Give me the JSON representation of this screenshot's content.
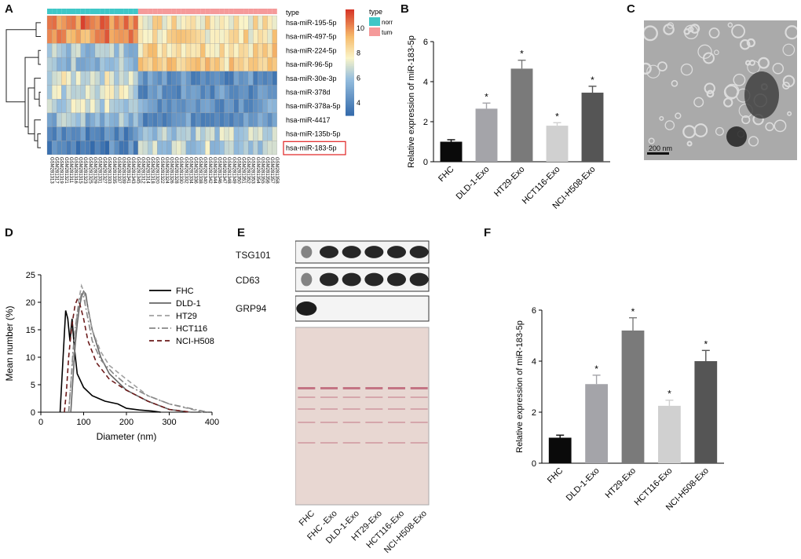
{
  "figure": {
    "panels": {
      "A": "A",
      "B": "B",
      "C": "C",
      "D": "D",
      "E": "E",
      "F": "F"
    }
  },
  "heatmap": {
    "rows": [
      "hsa-miR-195-5p",
      "hsa-miR-497-5p",
      "hsa-miR-224-5p",
      "hsa-miR-96-5p",
      "hsa-miR-30e-3p",
      "hsa-miR-378d",
      "hsa-miR-378a-5p",
      "hsa-miR-4417",
      "hsa-miR-135b-5p",
      "hsa-miR-183-5p"
    ],
    "highlighted_row": "hsa-miR-183-5p",
    "type_label": "type",
    "legend_title": "type",
    "legend_items": [
      {
        "label": "normal",
        "color": "#3fc7c7"
      },
      {
        "label": "tumor",
        "color": "#f59a9a"
      }
    ],
    "colorbar_ticks": [
      "10",
      "8",
      "6",
      "4"
    ],
    "colorbar_range": [
      3,
      11.5
    ],
    "n_normal": 19,
    "n_tumor": 29,
    "sample_ids": [
      "GSM281313",
      "GSM281317",
      "GSM281319",
      "GSM281321",
      "GSM281311",
      "GSM281316",
      "GSM281315",
      "GSM281323",
      "GSM281325",
      "GSM281329",
      "GSM281331",
      "GSM281327",
      "GSM281333",
      "GSM281335",
      "GSM281337",
      "GSM281339",
      "GSM281341",
      "GSM281343",
      "GSM281345",
      "GSM281312",
      "GSM281314",
      "GSM281318",
      "GSM281320",
      "GSM281322",
      "GSM281324",
      "GSM281326",
      "GSM281328",
      "GSM281330",
      "GSM281332",
      "GSM281334",
      "GSM281336",
      "GSM281338",
      "GSM281340",
      "GSM281342",
      "GSM281344",
      "GSM281346",
      "GSM281347",
      "GSM281348",
      "GSM281349",
      "GSM281350",
      "GSM281351",
      "GSM281352",
      "GSM281353",
      "GSM281354",
      "GSM281355",
      "GSM281356",
      "GSM281357",
      "GSM281358"
    ]
  },
  "micrograph": {
    "scale_bar": "200 nm"
  },
  "blot": {
    "bands": [
      "TSG101",
      "CD63",
      "GRP94"
    ],
    "lanes": [
      "FHC",
      "FHC -Exo",
      "DLD-1-Exo",
      "HT29-Exo",
      "HCT116-Exo",
      "NCI-H508-Exo"
    ]
  },
  "chart_data": [
    {
      "panel": "B",
      "type": "bar",
      "categories": [
        "FHC",
        "DLD-1-Exo",
        "HT29-Exo",
        "HCT116-Exo",
        "NCI-H508-Exo"
      ],
      "values": [
        1.0,
        2.65,
        4.65,
        1.8,
        3.45
      ],
      "errors": [
        0.1,
        0.28,
        0.42,
        0.15,
        0.32
      ],
      "significance": [
        "",
        "*",
        "*",
        "*",
        "*"
      ],
      "colors": [
        "#0a0a0a",
        "#a4a4a9",
        "#7a7a7a",
        "#d0d0d0",
        "#555555"
      ],
      "ylabel": "Relative expression of miR-183-5p",
      "ylim": [
        0,
        6
      ],
      "yticks": [
        0,
        2,
        4,
        6
      ]
    },
    {
      "panel": "D",
      "type": "line",
      "xlabel": "Diameter (nm)",
      "ylabel": "Mean number (%)",
      "xlim": [
        0,
        400
      ],
      "ylim": [
        0,
        25
      ],
      "xticks": [
        0,
        100,
        200,
        300,
        400
      ],
      "yticks": [
        0,
        5,
        10,
        15,
        20,
        25
      ],
      "series": [
        {
          "name": "FHC",
          "color": "#000000",
          "dash": "",
          "x": [
            45,
            52,
            58,
            63,
            68,
            73,
            78,
            85,
            100,
            120,
            150,
            180,
            200,
            230,
            260,
            280
          ],
          "y": [
            0,
            10,
            18.5,
            17,
            13,
            17,
            12,
            7,
            4.5,
            3,
            2,
            1.5,
            0.7,
            0.4,
            0.2,
            0
          ]
        },
        {
          "name": "DLD-1",
          "color": "#666666",
          "dash": "",
          "x": [
            70,
            75,
            80,
            85,
            90,
            95,
            100,
            105,
            110,
            120,
            140,
            160,
            200,
            250,
            300,
            350
          ],
          "y": [
            0,
            6,
            12,
            16,
            19,
            21,
            22,
            21.5,
            19,
            15,
            10,
            7,
            4,
            2,
            0.5,
            0
          ]
        },
        {
          "name": "HT29",
          "color": "#a0a0a0",
          "dash": "6,4",
          "x": [
            65,
            70,
            75,
            80,
            85,
            90,
            95,
            100,
            110,
            120,
            140,
            160,
            200,
            250,
            300,
            380
          ],
          "y": [
            0,
            5,
            10,
            14,
            18,
            21,
            23,
            22,
            19,
            15,
            11,
            8.5,
            6,
            3,
            1.5,
            0
          ]
        },
        {
          "name": "HCT116",
          "color": "#888888",
          "dash": "8,3,2,3",
          "x": [
            65,
            70,
            75,
            80,
            85,
            90,
            95,
            100,
            110,
            120,
            140,
            170,
            200,
            250,
            300,
            390
          ],
          "y": [
            0,
            5,
            11,
            15,
            18,
            20,
            21.5,
            21,
            17,
            13,
            9.5,
            7,
            5,
            3,
            1.5,
            0
          ]
        },
        {
          "name": "NCI-H508",
          "color": "#6b1a1a",
          "dash": "6,4",
          "x": [
            55,
            60,
            65,
            70,
            75,
            80,
            85,
            90,
            100,
            110,
            130,
            160,
            200,
            250,
            300,
            350
          ],
          "y": [
            0,
            4,
            10,
            14,
            17,
            19.5,
            20.5,
            20,
            17,
            13,
            9,
            6,
            4,
            2,
            0.5,
            0
          ]
        }
      ]
    },
    {
      "panel": "F",
      "type": "bar",
      "categories": [
        "FHC",
        "DLD-1-Exo",
        "HT29-Exo",
        "HCT116-Exo",
        "NCI-H508-Exo"
      ],
      "values": [
        1.0,
        3.1,
        5.2,
        2.25,
        4.0
      ],
      "errors": [
        0.1,
        0.35,
        0.5,
        0.22,
        0.42
      ],
      "significance": [
        "",
        "*",
        "*",
        "*",
        "*"
      ],
      "colors": [
        "#0a0a0a",
        "#a4a4a9",
        "#7a7a7a",
        "#d0d0d0",
        "#555555"
      ],
      "ylabel": "Relative expression of miR-183-5p",
      "ylim": [
        0,
        6
      ],
      "yticks": [
        0,
        2,
        4,
        6
      ]
    }
  ]
}
